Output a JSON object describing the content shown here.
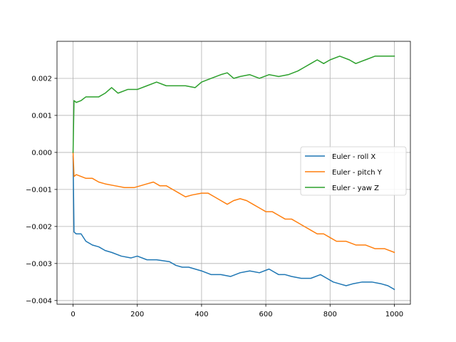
{
  "chart_data": {
    "type": "line",
    "title": "",
    "xlabel": "",
    "ylabel": "",
    "xlim": [
      -50,
      1050
    ],
    "ylim": [
      -0.0041,
      0.003
    ],
    "grid": true,
    "legend_position": "center-right",
    "x_ticks": [
      0,
      200,
      400,
      600,
      800,
      1000
    ],
    "x_tick_labels": [
      "0",
      "200",
      "400",
      "600",
      "800",
      "1000"
    ],
    "y_ticks": [
      -0.004,
      -0.003,
      -0.002,
      -0.001,
      0.0,
      0.001,
      0.002
    ],
    "y_tick_labels": [
      "−0.004",
      "−0.003",
      "−0.002",
      "−0.001",
      "0.000",
      "0.001",
      "0.002"
    ],
    "series": [
      {
        "name": "Euler - roll X",
        "color": "#1f77b4",
        "x": [
          0,
          3,
          10,
          25,
          40,
          60,
          80,
          100,
          120,
          150,
          180,
          200,
          230,
          260,
          300,
          320,
          340,
          360,
          380,
          400,
          430,
          460,
          490,
          520,
          550,
          580,
          610,
          640,
          660,
          680,
          710,
          740,
          770,
          790,
          810,
          830,
          850,
          870,
          900,
          930,
          960,
          980,
          1000
        ],
        "y": [
          -0.0001,
          -0.00215,
          -0.0022,
          -0.0022,
          -0.0024,
          -0.0025,
          -0.00255,
          -0.00265,
          -0.0027,
          -0.0028,
          -0.00285,
          -0.0028,
          -0.0029,
          -0.0029,
          -0.00295,
          -0.00305,
          -0.0031,
          -0.0031,
          -0.00315,
          -0.0032,
          -0.0033,
          -0.0033,
          -0.00335,
          -0.00325,
          -0.0032,
          -0.00325,
          -0.00315,
          -0.0033,
          -0.0033,
          -0.00335,
          -0.0034,
          -0.0034,
          -0.0033,
          -0.0034,
          -0.0035,
          -0.00355,
          -0.0036,
          -0.00355,
          -0.0035,
          -0.0035,
          -0.00355,
          -0.0036,
          -0.0037
        ]
      },
      {
        "name": "Euler - pitch Y",
        "color": "#ff7f0e",
        "x": [
          0,
          3,
          10,
          25,
          40,
          60,
          80,
          100,
          130,
          160,
          190,
          210,
          230,
          250,
          270,
          290,
          310,
          330,
          350,
          370,
          400,
          420,
          440,
          460,
          480,
          500,
          520,
          540,
          560,
          580,
          600,
          620,
          640,
          660,
          680,
          700,
          720,
          740,
          760,
          780,
          800,
          820,
          850,
          880,
          910,
          940,
          970,
          1000
        ],
        "y": [
          0.0,
          -0.00065,
          -0.0006,
          -0.00065,
          -0.0007,
          -0.0007,
          -0.0008,
          -0.00085,
          -0.0009,
          -0.00095,
          -0.00095,
          -0.0009,
          -0.00085,
          -0.0008,
          -0.0009,
          -0.0009,
          -0.001,
          -0.0011,
          -0.0012,
          -0.00115,
          -0.0011,
          -0.0011,
          -0.0012,
          -0.0013,
          -0.0014,
          -0.0013,
          -0.00125,
          -0.0013,
          -0.0014,
          -0.0015,
          -0.0016,
          -0.0016,
          -0.0017,
          -0.0018,
          -0.0018,
          -0.0019,
          -0.002,
          -0.0021,
          -0.0022,
          -0.0022,
          -0.0023,
          -0.0024,
          -0.0024,
          -0.0025,
          -0.0025,
          -0.0026,
          -0.0026,
          -0.0027
        ]
      },
      {
        "name": "Euler - yaw Z",
        "color": "#2ca02c",
        "x": [
          0,
          3,
          10,
          25,
          40,
          60,
          80,
          100,
          120,
          140,
          170,
          200,
          230,
          260,
          290,
          320,
          350,
          380,
          400,
          430,
          460,
          480,
          500,
          520,
          550,
          580,
          610,
          640,
          670,
          700,
          720,
          740,
          760,
          780,
          800,
          830,
          860,
          880,
          910,
          940,
          970,
          990,
          1000
        ],
        "y": [
          0.0,
          0.0014,
          0.00135,
          0.0014,
          0.0015,
          0.0015,
          0.0015,
          0.0016,
          0.00175,
          0.0016,
          0.0017,
          0.0017,
          0.0018,
          0.0019,
          0.0018,
          0.0018,
          0.0018,
          0.00175,
          0.0019,
          0.002,
          0.0021,
          0.00215,
          0.002,
          0.00205,
          0.0021,
          0.002,
          0.0021,
          0.00205,
          0.0021,
          0.0022,
          0.0023,
          0.0024,
          0.0025,
          0.0024,
          0.0025,
          0.0026,
          0.0025,
          0.0024,
          0.0025,
          0.0026,
          0.0026,
          0.0026,
          0.0026
        ]
      }
    ]
  }
}
